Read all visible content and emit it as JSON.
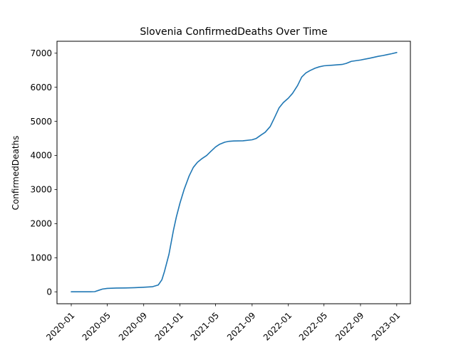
{
  "chart_data": {
    "type": "line",
    "title": "Slovenia  ConfirmedDeaths Over Time",
    "xlabel": "",
    "ylabel": "ConfirmedDeaths",
    "x_axis_type": "date",
    "xlim": [
      "2019-11-14",
      "2023-02-16"
    ],
    "ylim": [
      -350,
      7350
    ],
    "x_ticks": [
      "2020-01",
      "2020-05",
      "2020-09",
      "2021-01",
      "2021-05",
      "2021-09",
      "2022-01",
      "2022-05",
      "2022-09",
      "2023-01"
    ],
    "y_ticks": [
      0,
      1000,
      2000,
      3000,
      4000,
      5000,
      6000,
      7000
    ],
    "grid": false,
    "legend": "none",
    "line_color": "#1f77b4",
    "series": [
      {
        "points": [
          [
            "2020-01-01",
            0
          ],
          [
            "2020-02-01",
            0
          ],
          [
            "2020-03-01",
            0
          ],
          [
            "2020-03-20",
            5
          ],
          [
            "2020-04-01",
            40
          ],
          [
            "2020-04-15",
            80
          ],
          [
            "2020-05-01",
            100
          ],
          [
            "2020-06-01",
            110
          ],
          [
            "2020-07-01",
            112
          ],
          [
            "2020-08-01",
            120
          ],
          [
            "2020-09-01",
            133
          ],
          [
            "2020-10-01",
            150
          ],
          [
            "2020-10-20",
            200
          ],
          [
            "2020-11-01",
            350
          ],
          [
            "2020-11-10",
            600
          ],
          [
            "2020-11-25",
            1100
          ],
          [
            "2020-12-10",
            1800
          ],
          [
            "2020-12-20",
            2200
          ],
          [
            "2021-01-01",
            2600
          ],
          [
            "2021-01-15",
            3000
          ],
          [
            "2021-02-01",
            3400
          ],
          [
            "2021-02-15",
            3650
          ],
          [
            "2021-03-01",
            3800
          ],
          [
            "2021-03-15",
            3900
          ],
          [
            "2021-04-01",
            4000
          ],
          [
            "2021-04-15",
            4120
          ],
          [
            "2021-05-01",
            4250
          ],
          [
            "2021-05-15",
            4330
          ],
          [
            "2021-06-01",
            4390
          ],
          [
            "2021-06-15",
            4415
          ],
          [
            "2021-07-01",
            4425
          ],
          [
            "2021-08-01",
            4430
          ],
          [
            "2021-09-01",
            4460
          ],
          [
            "2021-09-15",
            4500
          ],
          [
            "2021-10-01",
            4600
          ],
          [
            "2021-10-15",
            4680
          ],
          [
            "2021-11-01",
            4850
          ],
          [
            "2021-11-15",
            5100
          ],
          [
            "2021-12-01",
            5400
          ],
          [
            "2021-12-15",
            5550
          ],
          [
            "2022-01-01",
            5680
          ],
          [
            "2022-01-15",
            5820
          ],
          [
            "2022-02-01",
            6050
          ],
          [
            "2022-02-15",
            6300
          ],
          [
            "2022-03-01",
            6420
          ],
          [
            "2022-03-15",
            6490
          ],
          [
            "2022-04-01",
            6560
          ],
          [
            "2022-04-15",
            6600
          ],
          [
            "2022-05-01",
            6630
          ],
          [
            "2022-06-01",
            6650
          ],
          [
            "2022-07-01",
            6670
          ],
          [
            "2022-07-15",
            6700
          ],
          [
            "2022-08-01",
            6760
          ],
          [
            "2022-09-01",
            6800
          ],
          [
            "2022-10-01",
            6850
          ],
          [
            "2022-11-01",
            6910
          ],
          [
            "2022-11-15",
            6930
          ],
          [
            "2022-12-01",
            6960
          ],
          [
            "2022-12-15",
            6985
          ],
          [
            "2023-01-01",
            7020
          ]
        ]
      }
    ]
  }
}
